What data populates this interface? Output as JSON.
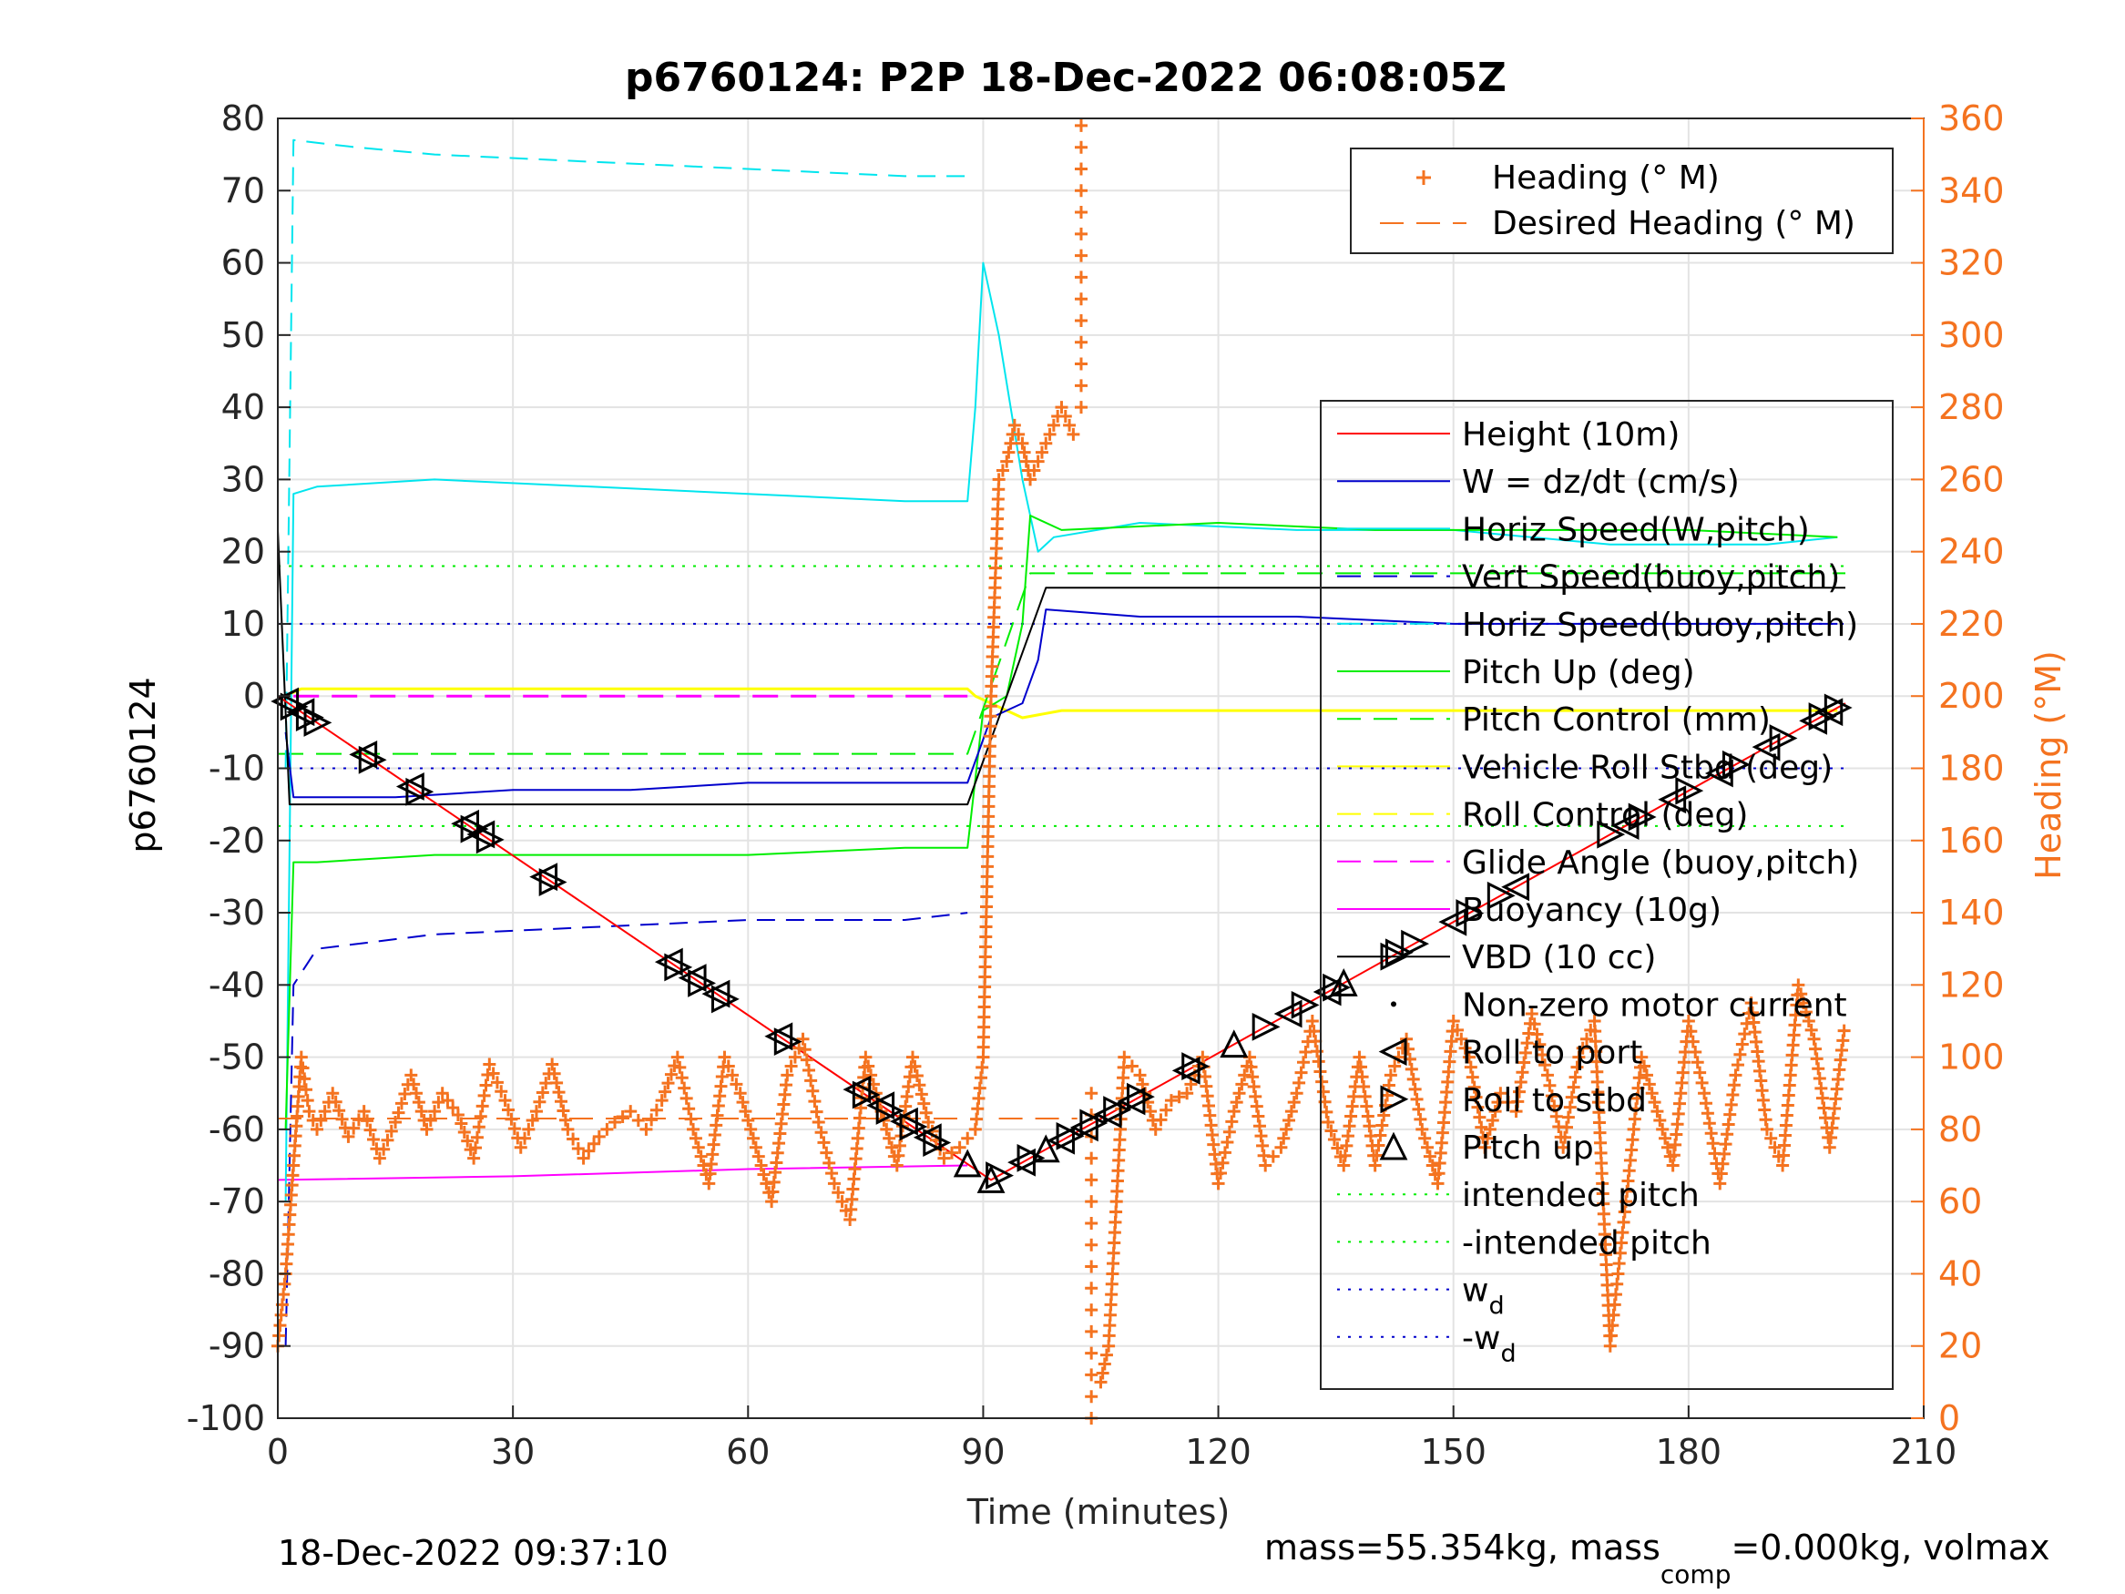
{
  "chart_data": {
    "type": "line",
    "title": "p6760124: P2P 18-Dec-2022 06:08:05Z",
    "xlabel": "Time (minutes)",
    "ylabel": "p6760124",
    "y2label": "Heading (°M)",
    "xlim": [
      0,
      210
    ],
    "ylim": [
      -100,
      80
    ],
    "y2lim": [
      0,
      360
    ],
    "xticks": [
      "0",
      "30",
      "60",
      "90",
      "120",
      "150",
      "180",
      "210"
    ],
    "yticks": [
      "-100",
      "-90",
      "-80",
      "-70",
      "-60",
      "-50",
      "-40",
      "-30",
      "-20",
      "-10",
      "0",
      "10",
      "20",
      "30",
      "40",
      "50",
      "60",
      "70",
      "80"
    ],
    "y2ticks": [
      "0",
      "20",
      "40",
      "60",
      "80",
      "100",
      "120",
      "140",
      "160",
      "180",
      "200",
      "220",
      "240",
      "260",
      "280",
      "300",
      "320",
      "340",
      "360"
    ],
    "grid": true,
    "footer_left": "18-Dec-2022 09:37:10",
    "footer_right": {
      "pre": "mass=55.354kg, mass",
      "sub": "comp",
      "post": "=0.000kg, volmax"
    },
    "colors": {
      "axis_right": "#f47320",
      "height": "#ff0000",
      "w": "#0000cc",
      "horiz": "#00e5ee",
      "pitch": "#00ee00",
      "roll": "#ffff00",
      "glide": "#ff00ff",
      "vbd": "#000000",
      "heading": "#f47320"
    },
    "legend_heading": {
      "placement": "top-right",
      "entries": [
        "Heading (° M)",
        "Desired Heading (° M)"
      ]
    },
    "legend_main": {
      "placement": "right",
      "entries": [
        {
          "label": "Height (10m)"
        },
        {
          "label": "W = dz/dt (cm/s)"
        },
        {
          "label": "Horiz Speed(W,pitch)"
        },
        {
          "label": "Vert Speed(buoy,pitch)"
        },
        {
          "label": "Horiz Speed(buoy,pitch)"
        },
        {
          "label": "Pitch Up (deg)"
        },
        {
          "label": "Pitch Control (mm)"
        },
        {
          "label": "Vehicle Roll Stbd (deg)"
        },
        {
          "label": "Roll Control (deg)"
        },
        {
          "label": "Glide Angle (buoy,pitch)"
        },
        {
          "label": "Buoyancy (10g)"
        },
        {
          "label": "VBD (10 cc)"
        },
        {
          "label": "Non-zero motor current"
        },
        {
          "label": "Roll to port"
        },
        {
          "label": "Roll to stbd"
        },
        {
          "label": "Pitch up"
        },
        {
          "label": "intended pitch"
        },
        {
          "label": "-intended pitch"
        },
        {
          "label": "w",
          "sub": "d"
        },
        {
          "label": "-w",
          "sub": "d"
        }
      ]
    },
    "series": [
      {
        "name": "Height (10m)",
        "x": [
          0,
          91,
          200
        ],
        "y": [
          0,
          -67,
          -1
        ]
      },
      {
        "name": "W = dz/dt (cm/s)",
        "x": [
          1,
          2,
          5,
          15,
          30,
          45,
          60,
          75,
          88,
          91,
          95,
          97,
          98,
          110,
          130,
          150,
          170,
          190,
          199
        ],
        "y": [
          -5,
          -14,
          -14,
          -14,
          -13,
          -13,
          -12,
          -12,
          -12,
          -3,
          -1,
          5,
          12,
          11,
          11,
          10,
          10,
          10,
          10
        ]
      },
      {
        "name": "Horiz Speed(W,pitch)",
        "x": [
          1,
          2,
          5,
          20,
          40,
          60,
          80,
          88,
          89,
          90,
          92,
          95,
          97,
          99,
          110,
          130,
          150,
          170,
          190,
          199
        ],
        "y": [
          -70,
          28,
          29,
          30,
          29,
          28,
          27,
          27,
          40,
          60,
          50,
          30,
          20,
          22,
          24,
          23,
          23,
          21,
          21,
          22
        ]
      },
      {
        "name": "Vert Speed(buoy,pitch)",
        "x": [
          1,
          2,
          5,
          20,
          40,
          60,
          80,
          88
        ],
        "y": [
          -90,
          -40,
          -35,
          -33,
          -32,
          -31,
          -31,
          -30
        ]
      },
      {
        "name": "Horiz Speed(buoy,pitch)",
        "x": [
          1,
          2,
          10,
          20,
          40,
          60,
          80,
          88
        ],
        "y": [
          -10,
          77,
          76,
          75,
          74,
          73,
          72,
          72
        ]
      },
      {
        "name": "Pitch Up (deg)",
        "x": [
          1,
          2,
          5,
          20,
          40,
          60,
          80,
          88,
          90,
          93,
          95,
          96,
          100,
          120,
          140,
          160,
          180,
          199
        ],
        "y": [
          -60,
          -23,
          -23,
          -22,
          -22,
          -22,
          -21,
          -21,
          -2,
          0,
          10,
          25,
          23,
          24,
          23,
          23,
          23,
          22
        ]
      },
      {
        "name": "Pitch Control (mm)",
        "x": [
          0,
          88,
          96,
          200
        ],
        "y": [
          -8,
          -8,
          17,
          17
        ]
      },
      {
        "name": "Vehicle Roll Stbd (deg)",
        "x": [
          1,
          3,
          10,
          30,
          50,
          70,
          88,
          89,
          95,
          100,
          120,
          140,
          160,
          180,
          199
        ],
        "y": [
          0,
          1,
          1,
          1,
          1,
          1,
          1,
          0,
          -3,
          -2,
          -2,
          -2,
          -2,
          -2,
          -2
        ]
      },
      {
        "name": "Glide Angle (buoy,pitch)",
        "x": [
          2,
          88
        ],
        "y": [
          0,
          0
        ]
      },
      {
        "name": "Buoyancy (10g)",
        "x": [
          0,
          30,
          60,
          88
        ],
        "y": [
          -67,
          -66.5,
          -65.5,
          -65
        ]
      },
      {
        "name": "VBD (10 cc)",
        "x": [
          0,
          1.5,
          88,
          98,
          200
        ],
        "y": [
          23,
          -15,
          -15,
          15,
          15
        ]
      },
      {
        "name": "intended pitch",
        "x": [
          0,
          200
        ],
        "y": [
          18,
          18
        ]
      },
      {
        "name": "-intended pitch",
        "x": [
          0,
          200
        ],
        "y": [
          -18,
          -18
        ]
      },
      {
        "name": "w_d",
        "x": [
          0,
          200
        ],
        "y": [
          10,
          10
        ]
      },
      {
        "name": "-w_d",
        "x": [
          0,
          200
        ],
        "y": [
          -10,
          -10
        ]
      }
    ],
    "heading": {
      "name": "Heading (° M)",
      "x": [
        0,
        1,
        2,
        3,
        4,
        5,
        7,
        9,
        11,
        13,
        15,
        17,
        19,
        21,
        23,
        25,
        27,
        29,
        31,
        33,
        35,
        37,
        39,
        41,
        43,
        45,
        47,
        49,
        51,
        53,
        55,
        57,
        59,
        61,
        63,
        65,
        67,
        69,
        71,
        73,
        75,
        77,
        79,
        81,
        83,
        85,
        87,
        89,
        90,
        91,
        92,
        93,
        94,
        95,
        96,
        97,
        98,
        99,
        100,
        101,
        102,
        103,
        104,
        105,
        106,
        107,
        108,
        110,
        112,
        114,
        116,
        118,
        120,
        122,
        124,
        126,
        128,
        130,
        132,
        134,
        136,
        138,
        140,
        142,
        144,
        146,
        148,
        150,
        152,
        154,
        156,
        158,
        160,
        162,
        164,
        166,
        168,
        170,
        172,
        174,
        176,
        178,
        180,
        182,
        184,
        186,
        188,
        190,
        192,
        194,
        196,
        198,
        200
      ],
      "y": [
        20,
        40,
        70,
        100,
        85,
        80,
        90,
        78,
        85,
        72,
        82,
        95,
        80,
        90,
        84,
        72,
        98,
        88,
        75,
        85,
        98,
        80,
        72,
        78,
        82,
        85,
        80,
        88,
        100,
        80,
        65,
        100,
        90,
        75,
        60,
        95,
        105,
        82,
        65,
        55,
        100,
        85,
        70,
        100,
        82,
        72,
        75,
        80,
        100,
        200,
        260,
        265,
        275,
        270,
        260,
        265,
        270,
        275,
        280,
        275,
        270,
        0,
        360,
        10,
        20,
        60,
        100,
        95,
        80,
        88,
        90,
        100,
        65,
        85,
        100,
        70,
        75,
        90,
        110,
        82,
        70,
        100,
        70,
        95,
        105,
        80,
        65,
        110,
        100,
        75,
        90,
        85,
        112,
        95,
        75,
        100,
        110,
        20,
        60,
        100,
        85,
        70,
        110,
        90,
        65,
        95,
        115,
        80,
        70,
        120,
        105,
        75,
        110
      ]
    },
    "desired_heading": {
      "name": "Desired Heading (° M)",
      "segments": [
        {
          "x": [
            0,
            88
          ],
          "y": [
            83,
            83
          ]
        },
        {
          "x": [
            92,
            102
          ],
          "y": [
            83,
            83
          ]
        }
      ]
    },
    "markers": {
      "roll_to_port": {
        "x": [
          1,
          3,
          11,
          17,
          24,
          26,
          34,
          50,
          53,
          56,
          64,
          74,
          77,
          80,
          83,
          95,
          100,
          103,
          106,
          109,
          116,
          129,
          134,
          150,
          158,
          172,
          178,
          184,
          190,
          196,
          198
        ]
      },
      "roll_to_stbd": {
        "x": [
          2,
          4,
          5,
          12,
          18,
          25,
          27,
          35,
          51,
          54,
          57,
          65,
          75,
          78,
          81,
          84,
          92,
          96,
          101,
          104,
          107,
          110,
          117,
          126,
          131,
          135,
          143,
          145,
          152,
          156,
          170,
          174,
          180,
          186,
          192,
          197,
          199
        ]
      },
      "pitch_up": {
        "x": [
          88,
          91,
          98,
          122,
          136
        ]
      }
    }
  }
}
